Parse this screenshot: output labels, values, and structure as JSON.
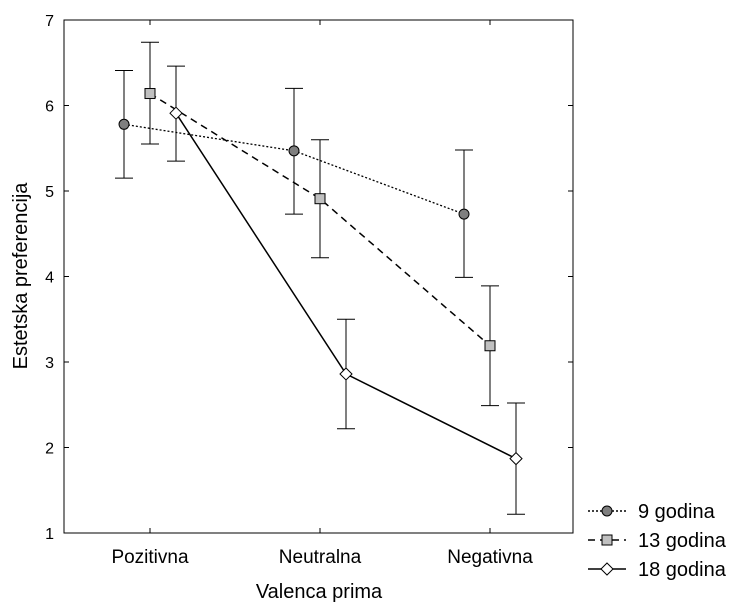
{
  "chart_data": {
    "type": "line",
    "categories": [
      "Pozitivna",
      "Neutralna",
      "Negativna"
    ],
    "xlabel": "Valenca prima",
    "ylabel": "Estetska preferencija",
    "ylim": [
      1,
      7
    ],
    "yticks": [
      "1",
      "2",
      "3",
      "4",
      "5",
      "6",
      "7"
    ],
    "grid": false,
    "legend_position": "bottom-right, outside plot",
    "series": [
      {
        "name": "9 godina",
        "marker": "circle",
        "line_style": "dotted",
        "marker_fill": "#7f7f7f",
        "values": [
          5.78,
          5.47,
          4.73
        ],
        "err_low": [
          5.15,
          4.73,
          3.99
        ],
        "err_high": [
          6.41,
          6.2,
          5.48
        ]
      },
      {
        "name": "13 godina",
        "marker": "square",
        "line_style": "dashed",
        "marker_fill": "#c0c0c0",
        "values": [
          6.14,
          4.91,
          3.19
        ],
        "err_low": [
          5.55,
          4.22,
          2.49
        ],
        "err_high": [
          6.74,
          5.6,
          3.89
        ]
      },
      {
        "name": "18 godina",
        "marker": "diamond",
        "line_style": "solid",
        "marker_fill": "#ffffff",
        "values": [
          5.91,
          2.86,
          1.87
        ],
        "err_low": [
          5.35,
          2.22,
          1.22
        ],
        "err_high": [
          6.46,
          3.5,
          2.52
        ]
      }
    ]
  }
}
